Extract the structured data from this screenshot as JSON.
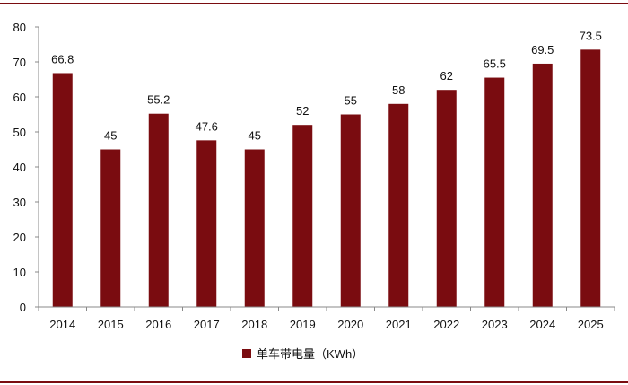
{
  "chart_data": {
    "type": "bar",
    "categories": [
      "2014",
      "2015",
      "2016",
      "2017",
      "2018",
      "2019",
      "2020",
      "2021",
      "2022",
      "2023",
      "2024",
      "2025"
    ],
    "series": [
      {
        "name": "单车带电量（KWh）",
        "values": [
          66.8,
          45,
          55.2,
          47.6,
          45,
          52,
          55,
          58,
          62,
          65.5,
          69.5,
          73.5
        ],
        "labels": [
          "66.8",
          "45",
          "55.2",
          "47.6",
          "45",
          "52",
          "55",
          "58",
          "62",
          "65.5",
          "69.5",
          "73.5"
        ],
        "color": "#7a0c10"
      }
    ],
    "ylim": [
      0,
      80
    ],
    "yticks": [
      0,
      10,
      20,
      30,
      40,
      50,
      60,
      70,
      80
    ],
    "grid": false,
    "legend_position": "bottom-center"
  }
}
